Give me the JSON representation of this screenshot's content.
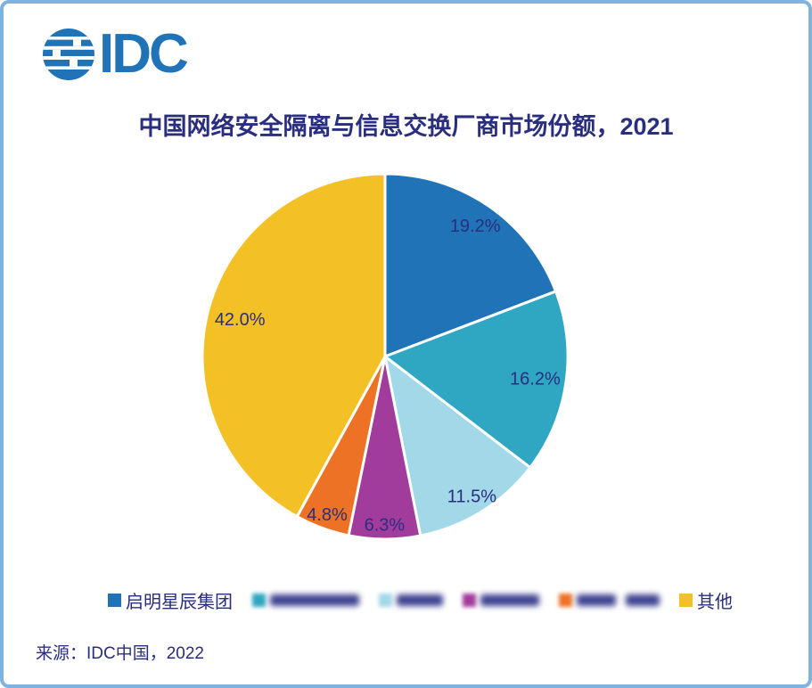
{
  "logo": {
    "text": "IDC",
    "color": "#2173B8"
  },
  "title": "中国网络安全隔离与信息交换厂商市场份额，2021",
  "source": "来源：IDC中国，2022",
  "colors": {
    "accent_navy_text": "#2A2E7F",
    "frame_border": "#7FB2DE",
    "slice_gap_stroke": "#FFFFFF"
  },
  "chart_data": {
    "type": "pie",
    "title": "中国网络安全隔离与信息交换厂商市场份额，2021",
    "unit": "percent",
    "start_angle_deg": 0,
    "direction": "clockwise",
    "legend_position": "bottom",
    "label_color": "#2A2E7F",
    "slices": [
      {
        "label": "启明星辰集团",
        "value": 19.2,
        "data_label": "19.2%",
        "color": "#2173B8",
        "redacted": false,
        "label_radius": 0.87
      },
      {
        "label": "",
        "value": 16.2,
        "data_label": "16.2%",
        "color": "#2FA6C2",
        "redacted": true,
        "label_radius": 0.83
      },
      {
        "label": "",
        "value": 11.5,
        "data_label": "11.5%",
        "color": "#A2D8E8",
        "redacted": true,
        "label_radius": 0.9
      },
      {
        "label": "",
        "value": 6.3,
        "data_label": "6.3%",
        "color": "#A23C9C",
        "redacted": true,
        "label_radius": 0.92
      },
      {
        "label": "",
        "value": 4.8,
        "data_label": "4.8%",
        "color": "#EE7225",
        "redacted": true,
        "label_radius": 0.92
      },
      {
        "label": "其他",
        "value": 42.0,
        "data_label": "42.0%",
        "color": "#F3C125",
        "redacted": false,
        "label_radius": 0.82
      }
    ]
  },
  "legend": {
    "items": [
      {
        "label": "启明星辰集团",
        "color": "#2173B8",
        "redacted": false,
        "blob_widths": []
      },
      {
        "label": "",
        "color": "#2FA6C2",
        "redacted": true,
        "blob_widths": [
          100
        ]
      },
      {
        "label": "",
        "color": "#A2D8E8",
        "redacted": true,
        "blob_widths": [
          52
        ]
      },
      {
        "label": "",
        "color": "#A23C9C",
        "redacted": true,
        "blob_widths": [
          66
        ]
      },
      {
        "label": "",
        "color": "#EE7225",
        "redacted": true,
        "blob_widths": [
          44,
          38
        ]
      },
      {
        "label": "其他",
        "color": "#F3C125",
        "redacted": false,
        "blob_widths": []
      }
    ]
  }
}
